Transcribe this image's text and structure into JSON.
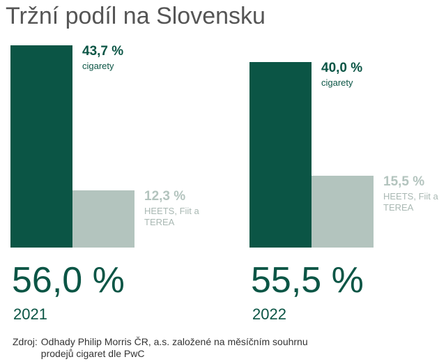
{
  "chart_data": {
    "type": "bar",
    "title": "Tržní podíl na Slovensku",
    "categories": [
      "2021",
      "2022"
    ],
    "series": [
      {
        "name": "cigarety",
        "color": "#0b5545",
        "values": [
          43.7,
          40.0
        ],
        "value_labels": [
          "43,7 %",
          "40,0 %"
        ]
      },
      {
        "name": "HEETS, Fiit a TEREA",
        "color": "#b3c4be",
        "values": [
          12.3,
          15.5
        ],
        "value_labels": [
          "12,3 %",
          "15,5 %"
        ]
      }
    ],
    "totals": {
      "values": [
        56.0,
        55.5
      ],
      "value_labels": [
        "56,0 %",
        "55,5 %"
      ]
    },
    "source_label": "Zdroj:",
    "source": "Odhady Philip Morris ČR, a.s. založené na měsíčním souhrnu prodejů cigaret dle PwC"
  }
}
